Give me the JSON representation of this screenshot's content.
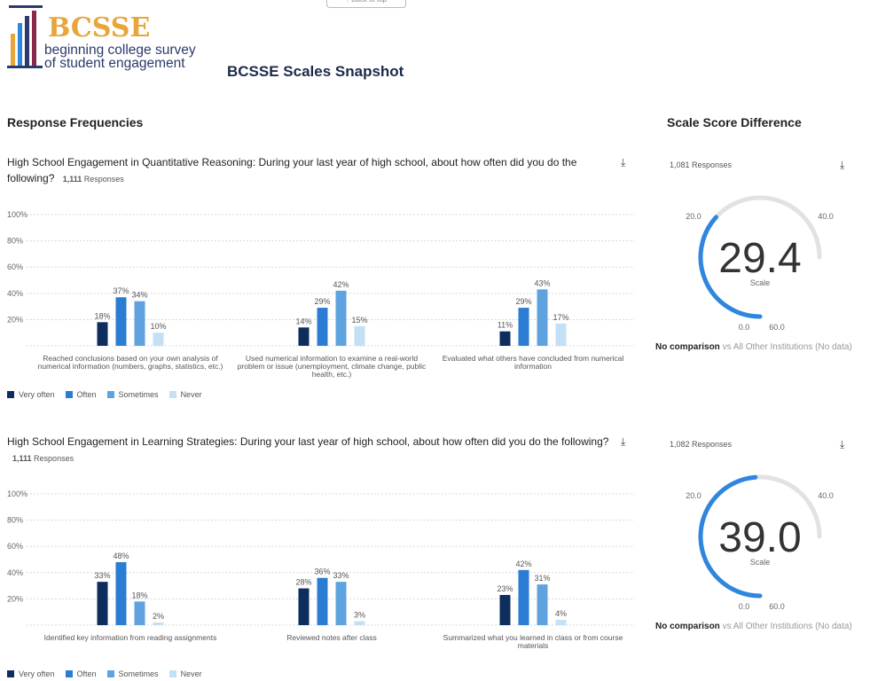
{
  "back_to_top": "↑ Back to top",
  "logo": {
    "name": "BCSSE",
    "line1": "beginning college survey",
    "line2": "of student engagement"
  },
  "page_title": "BCSSE Scales Snapshot",
  "left_section_title": "Response Frequencies",
  "right_section_title": "Scale Score Difference",
  "colors": {
    "very_often": "#0d2e5c",
    "often": "#2b7cd3",
    "sometimes": "#5ea3e0",
    "never": "#c3e0f5",
    "gauge_arc": "#2f86de",
    "gauge_track": "#e2e2e2"
  },
  "legend": [
    "Very often",
    "Often",
    "Sometimes",
    "Never"
  ],
  "download_icon": "download-icon",
  "chart_data": [
    {
      "type": "bar",
      "title": "High School Engagement in Quantitative Reasoning: During your last year of high school, about how often did you do the following?",
      "responses_count": "1,111",
      "responses_label": "Responses",
      "ylim": [
        0,
        100
      ],
      "yticks": [
        "100%",
        "80%",
        "60%",
        "40%",
        "20%"
      ],
      "categories": [
        [
          "Reached conclusions based on your own analysis of",
          "numerical information (numbers, graphs, statistics, etc.)"
        ],
        [
          "Used numerical information to examine a real-world",
          "problem or issue (unemployment, climate change, public",
          "health, etc.)"
        ],
        [
          "Evaluated what others have concluded from numerical",
          "information"
        ]
      ],
      "series": [
        {
          "name": "Very often",
          "values": [
            18,
            14,
            11
          ]
        },
        {
          "name": "Often",
          "values": [
            37,
            29,
            29
          ]
        },
        {
          "name": "Sometimes",
          "values": [
            34,
            42,
            43
          ]
        },
        {
          "name": "Never",
          "values": [
            10,
            15,
            17
          ]
        }
      ]
    },
    {
      "type": "bar",
      "title": "High School Engagement in Learning Strategies: During your last year of high school, about how often did you do the following?",
      "responses_count": "1,111",
      "responses_label": "Responses",
      "ylim": [
        0,
        100
      ],
      "yticks": [
        "100%",
        "80%",
        "60%",
        "40%",
        "20%"
      ],
      "categories": [
        [
          "Identified key information from reading assignments"
        ],
        [
          "Reviewed notes after class"
        ],
        [
          "Summarized what you learned in class or from course",
          "materials"
        ]
      ],
      "series": [
        {
          "name": "Very often",
          "values": [
            33,
            28,
            23
          ]
        },
        {
          "name": "Often",
          "values": [
            48,
            36,
            42
          ]
        },
        {
          "name": "Sometimes",
          "values": [
            18,
            33,
            31
          ]
        },
        {
          "name": "Never",
          "values": [
            2,
            3,
            4
          ]
        }
      ]
    }
  ],
  "gauges": [
    {
      "responses": "1,081 Responses",
      "value": 29.4,
      "value_label": "29.4",
      "min": 0,
      "max": 60,
      "min_label": "0.0",
      "max_label": "60.0",
      "tick20_label": "20.0",
      "tick40_label": "40.0",
      "scale_label": "Scale",
      "comparison_bold": "No comparison",
      "comparison_rest": " vs All Other Institutions (No data)"
    },
    {
      "responses": "1,082 Responses",
      "value": 39.0,
      "value_label": "39.0",
      "min": 0,
      "max": 60,
      "min_label": "0.0",
      "max_label": "60.0",
      "tick20_label": "20.0",
      "tick40_label": "40.0",
      "scale_label": "Scale",
      "comparison_bold": "No comparison",
      "comparison_rest": " vs All Other Institutions (No data)"
    }
  ]
}
